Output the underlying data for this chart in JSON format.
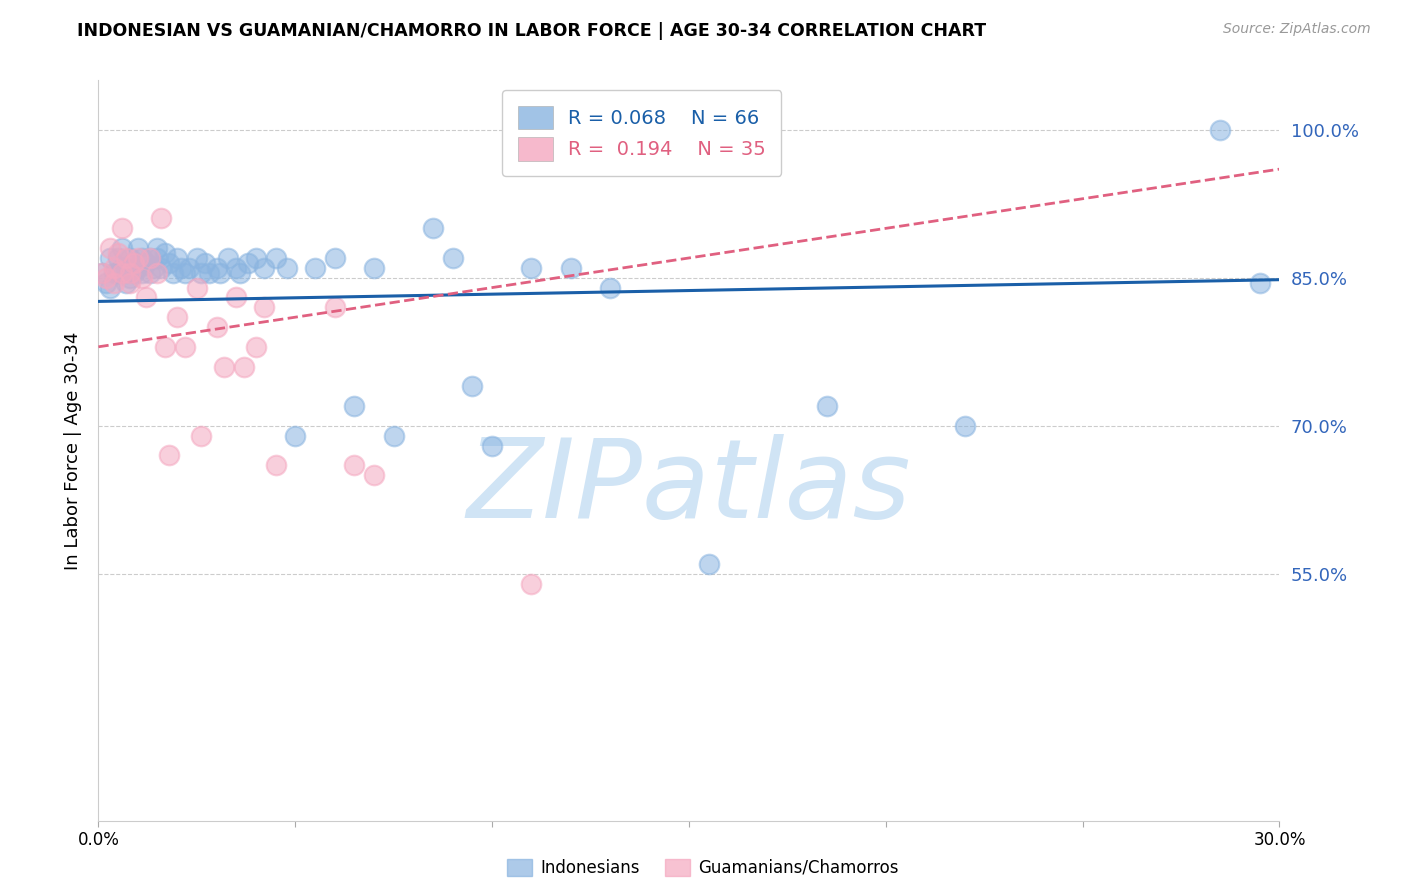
{
  "title": "INDONESIAN VS GUAMANIAN/CHAMORRO IN LABOR FORCE | AGE 30-34 CORRELATION CHART",
  "source": "Source: ZipAtlas.com",
  "ylabel": "In Labor Force | Age 30-34",
  "xlim": [
    0.0,
    0.3
  ],
  "ylim": [
    0.3,
    1.05
  ],
  "yticks": [
    0.55,
    0.7,
    0.85,
    1.0
  ],
  "ytick_labels": [
    "55.0%",
    "70.0%",
    "85.0%",
    "100.0%"
  ],
  "xticks": [
    0.0,
    0.05,
    0.1,
    0.15,
    0.2,
    0.25,
    0.3
  ],
  "xtick_labels": [
    "0.0%",
    "",
    "",
    "",
    "",
    "",
    "30.0%"
  ],
  "R_blue": 0.068,
  "N_blue": 66,
  "R_pink": 0.194,
  "N_pink": 35,
  "blue_color": "#8ab4e0",
  "pink_color": "#f4a8c0",
  "line_blue": "#1a5fa8",
  "line_pink": "#e06080",
  "watermark_color": "#d0e4f5",
  "blue_regression": [
    0.826,
    0.848
  ],
  "pink_regression": [
    0.78,
    0.96
  ],
  "blue_scatter_x": [
    0.001,
    0.002,
    0.003,
    0.003,
    0.004,
    0.005,
    0.005,
    0.006,
    0.006,
    0.007,
    0.007,
    0.008,
    0.008,
    0.008,
    0.009,
    0.009,
    0.01,
    0.01,
    0.011,
    0.011,
    0.012,
    0.013,
    0.013,
    0.014,
    0.015,
    0.015,
    0.016,
    0.017,
    0.018,
    0.019,
    0.02,
    0.021,
    0.022,
    0.023,
    0.025,
    0.026,
    0.027,
    0.028,
    0.03,
    0.031,
    0.033,
    0.035,
    0.036,
    0.038,
    0.04,
    0.042,
    0.045,
    0.048,
    0.05,
    0.055,
    0.06,
    0.065,
    0.07,
    0.075,
    0.085,
    0.09,
    0.095,
    0.1,
    0.11,
    0.12,
    0.13,
    0.155,
    0.185,
    0.22,
    0.285,
    0.295
  ],
  "blue_scatter_y": [
    0.855,
    0.845,
    0.87,
    0.84,
    0.855,
    0.87,
    0.855,
    0.88,
    0.86,
    0.855,
    0.845,
    0.87,
    0.86,
    0.85,
    0.865,
    0.855,
    0.88,
    0.86,
    0.87,
    0.855,
    0.865,
    0.87,
    0.855,
    0.86,
    0.88,
    0.87,
    0.86,
    0.875,
    0.865,
    0.855,
    0.87,
    0.86,
    0.855,
    0.86,
    0.87,
    0.855,
    0.865,
    0.855,
    0.86,
    0.855,
    0.87,
    0.86,
    0.855,
    0.865,
    0.87,
    0.86,
    0.87,
    0.86,
    0.69,
    0.86,
    0.87,
    0.72,
    0.86,
    0.69,
    0.9,
    0.87,
    0.74,
    0.68,
    0.86,
    0.86,
    0.84,
    0.56,
    0.72,
    0.7,
    1.0,
    0.845
  ],
  "pink_scatter_x": [
    0.001,
    0.002,
    0.003,
    0.004,
    0.004,
    0.005,
    0.006,
    0.006,
    0.007,
    0.008,
    0.008,
    0.009,
    0.01,
    0.011,
    0.012,
    0.013,
    0.015,
    0.016,
    0.017,
    0.018,
    0.02,
    0.022,
    0.025,
    0.026,
    0.03,
    0.032,
    0.035,
    0.037,
    0.04,
    0.042,
    0.045,
    0.06,
    0.065,
    0.07,
    0.11
  ],
  "pink_scatter_y": [
    0.855,
    0.85,
    0.88,
    0.86,
    0.845,
    0.875,
    0.9,
    0.855,
    0.87,
    0.855,
    0.845,
    0.865,
    0.87,
    0.85,
    0.83,
    0.87,
    0.855,
    0.91,
    0.78,
    0.67,
    0.81,
    0.78,
    0.84,
    0.69,
    0.8,
    0.76,
    0.83,
    0.76,
    0.78,
    0.82,
    0.66,
    0.82,
    0.66,
    0.65,
    0.54
  ]
}
